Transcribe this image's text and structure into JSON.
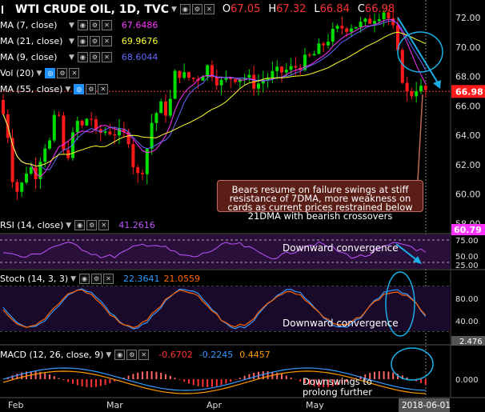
{
  "header": {
    "title": "WTI CRUDE OIL, 1D, TVC",
    "ohlc": [
      {
        "label": "O",
        "value": "67.05"
      },
      {
        "label": "H",
        "value": "67.32"
      },
      {
        "label": "L",
        "value": "66.84"
      },
      {
        "label": "C",
        "value": "66.98"
      }
    ]
  },
  "indicators": [
    {
      "label": "MA (7, close)",
      "value": "67.6486",
      "color": "#ff33ff"
    },
    {
      "label": "MA (21, close)",
      "value": "69.9676",
      "color": "#ffff33"
    },
    {
      "label": "MA (9, close)",
      "value": "68.6044",
      "color": "#6666ff"
    },
    {
      "label": "Vol (20)",
      "value": "",
      "color": "#ffffff"
    },
    {
      "label": "MA (55, close)",
      "value": "",
      "color": "#ffffff"
    }
  ],
  "annotations": {
    "main_note": "Bears resume on failure swings at stiff resistance of 7DMA, more weakness on cards as current prices restrained below 21DMA with bearish crossovers",
    "rsi_note": "Downward convergence",
    "stoch_note": "Downward convergence",
    "macd_note_1": "Downswings to",
    "macd_note_2": "prolong further"
  },
  "panes": {
    "rsi": {
      "label": "RSI (14, close)",
      "value": "41.2616",
      "color": "#bb55ff"
    },
    "stoch": {
      "label": "Stoch (14, 3, 3)",
      "values": [
        "22.3641",
        "21.0559"
      ],
      "colors": [
        "#3399ff",
        "#ff6600"
      ]
    },
    "macd": {
      "label": "MACD (12, 26, close, 9)",
      "values": [
        "-0.6702",
        "-0.2245",
        "0.4457"
      ],
      "colors": [
        "#ff3333",
        "#3399ff",
        "#ff9900"
      ]
    }
  },
  "price_tag": "66.98",
  "rsi_tag": "60.79",
  "stoch_tag": "2.476",
  "date_tag": "2018-06-01",
  "colors": {
    "up": "#00dd00",
    "down": "#ff1a1a",
    "rsi_bg": "#2a0f3a",
    "note_bg": "#5a1e17",
    "arrow": "#1ab0e8"
  },
  "chart_data": {
    "type": "candlestick",
    "x_labels": [
      "Feb",
      "Mar",
      "Apr",
      "May"
    ],
    "price_axis": {
      "ylim": [
        57.5,
        73.0
      ],
      "ticks": [
        58.0,
        60.0,
        62.0,
        64.0,
        66.0,
        68.0,
        70.0,
        72.0
      ]
    },
    "rsi_axis": {
      "ylim": [
        25,
        80
      ],
      "ticks": [
        75.0,
        50.0,
        25.0
      ]
    },
    "stoch_axis": {
      "ylim": [
        0,
        100
      ],
      "ticks": [
        80.0,
        40.0
      ]
    },
    "macd_axis": {
      "ylim": [
        -1.5,
        1.6
      ],
      "ticks": [
        0.0
      ]
    },
    "last_close": 66.98
  }
}
